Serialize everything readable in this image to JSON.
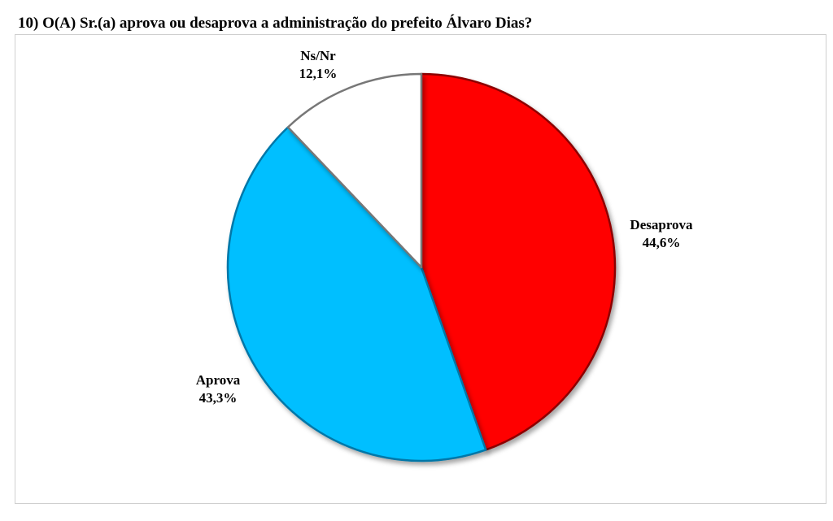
{
  "title": "10) O(A) Sr.(a) aprova ou desaprova a administração do prefeito Álvaro Dias?",
  "chart_data": {
    "type": "pie",
    "title": "10) O(A) Sr.(a) aprova ou desaprova a administração do prefeito Álvaro Dias?",
    "slices": [
      {
        "label": "Desaprova",
        "value": 44.6,
        "value_label": "44,6%",
        "color": "#ff0000",
        "stroke": "#8c0000"
      },
      {
        "label": "Aprova",
        "value": 43.3,
        "value_label": "43,3%",
        "color": "#00bfff",
        "stroke": "#0077a8"
      },
      {
        "label": "Ns/Nr",
        "value": 12.1,
        "value_label": "12,1%",
        "color": "#ffffff",
        "stroke": "#777777"
      }
    ],
    "start_angle": "12 o'clock",
    "direction": "clockwise",
    "legend": "none",
    "labels": "outside"
  }
}
